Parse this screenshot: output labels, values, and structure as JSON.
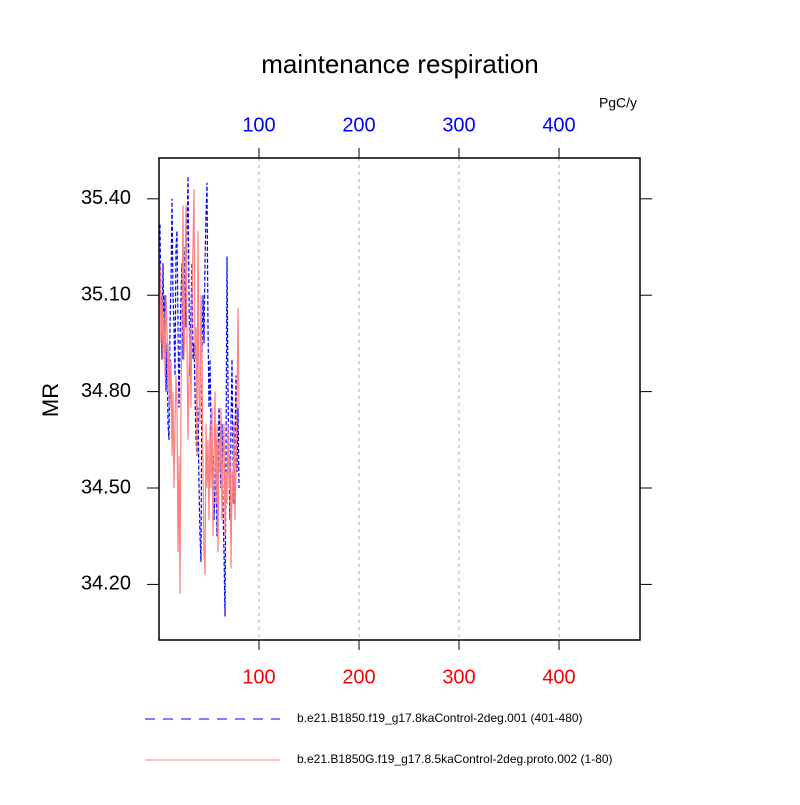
{
  "chart_data": {
    "type": "line",
    "title": "maintenance respiration",
    "ylabel": "MR",
    "x2label": "PgC/y",
    "x": [
      1,
      2,
      3,
      4,
      5,
      6,
      7,
      8,
      9,
      10,
      11,
      12,
      13,
      14,
      15,
      16,
      17,
      18,
      19,
      20,
      21,
      22,
      23,
      24,
      25,
      26,
      27,
      28,
      29,
      30,
      31,
      32,
      33,
      34,
      35,
      36,
      37,
      38,
      39,
      40,
      41,
      42,
      43,
      44,
      45,
      46,
      47,
      48,
      49,
      50,
      51,
      52,
      53,
      54,
      55,
      56,
      57,
      58,
      59,
      60,
      61,
      62,
      63,
      64,
      65,
      66,
      67,
      68,
      69,
      70,
      71,
      72,
      73,
      74,
      75,
      76,
      77,
      78,
      79,
      80
    ],
    "series": [
      {
        "name": "b.e21.B1850.f19_g17.8kaControl-2deg.001 (401-480)",
        "color": "#0000ff",
        "dash": true,
        "values": [
          35.32,
          35.05,
          34.9,
          35.2,
          34.95,
          35.1,
          34.8,
          34.95,
          34.7,
          34.65,
          35.0,
          35.15,
          35.4,
          35.1,
          35.0,
          34.85,
          35.25,
          35.3,
          35.0,
          34.75,
          34.95,
          35.1,
          35.2,
          34.9,
          35.05,
          35.25,
          35.0,
          35.3,
          35.47,
          35.1,
          34.85,
          35.05,
          35.2,
          34.9,
          34.95,
          34.8,
          34.65,
          34.6,
          34.75,
          34.5,
          34.35,
          34.27,
          34.9,
          35.1,
          34.95,
          35.2,
          35.35,
          35.45,
          35.0,
          34.75,
          34.9,
          34.7,
          34.55,
          34.6,
          34.4,
          34.5,
          34.65,
          34.35,
          34.55,
          34.75,
          34.65,
          34.5,
          34.7,
          34.45,
          34.3,
          34.1,
          34.6,
          35.22,
          34.8,
          34.55,
          34.4,
          34.7,
          34.9,
          34.6,
          34.45,
          34.65,
          34.85,
          34.55,
          34.75,
          34.5
        ]
      },
      {
        "name": "b.e21.B1850G.f19_g17.8.5kaControl-2deg.proto.002 (1-80)",
        "color": "#ff8080",
        "dash": false,
        "values": [
          35.2,
          34.95,
          35.1,
          34.9,
          35.05,
          34.85,
          35.1,
          35.0,
          34.8,
          34.95,
          34.75,
          34.9,
          34.6,
          34.8,
          34.5,
          34.7,
          34.85,
          34.75,
          34.3,
          34.6,
          34.17,
          34.8,
          35.0,
          35.38,
          34.9,
          35.1,
          35.38,
          34.95,
          34.65,
          34.85,
          35.0,
          34.75,
          35.1,
          35.25,
          35.43,
          34.9,
          35.0,
          34.6,
          35.3,
          34.8,
          34.7,
          35.1,
          34.9,
          34.55,
          34.3,
          34.23,
          34.7,
          34.5,
          34.65,
          34.4,
          34.7,
          34.5,
          34.75,
          34.35,
          34.6,
          34.8,
          34.45,
          34.7,
          34.3,
          34.65,
          34.55,
          34.75,
          34.4,
          34.6,
          34.7,
          34.35,
          34.55,
          34.45,
          34.7,
          34.5,
          34.6,
          34.25,
          34.55,
          34.45,
          34.7,
          34.4,
          34.55,
          34.75,
          35.06,
          34.75
        ]
      }
    ],
    "xlim": [
      0,
      481
    ],
    "xticks": [
      100,
      200,
      300,
      400
    ],
    "x2ticks": [
      100,
      200,
      300,
      400
    ],
    "xtick_color": "#ff0000",
    "x2tick_color": "#0000ff",
    "ylim": [
      34.027,
      35.527
    ],
    "yticks": [
      {
        "value": 34.2,
        "label": "34.20"
      },
      {
        "value": 34.5,
        "label": "34.50"
      },
      {
        "value": 34.8,
        "label": "34.80"
      },
      {
        "value": 35.1,
        "label": "35.10"
      },
      {
        "value": 35.4,
        "label": "35.40"
      }
    ],
    "xgrid": true
  }
}
